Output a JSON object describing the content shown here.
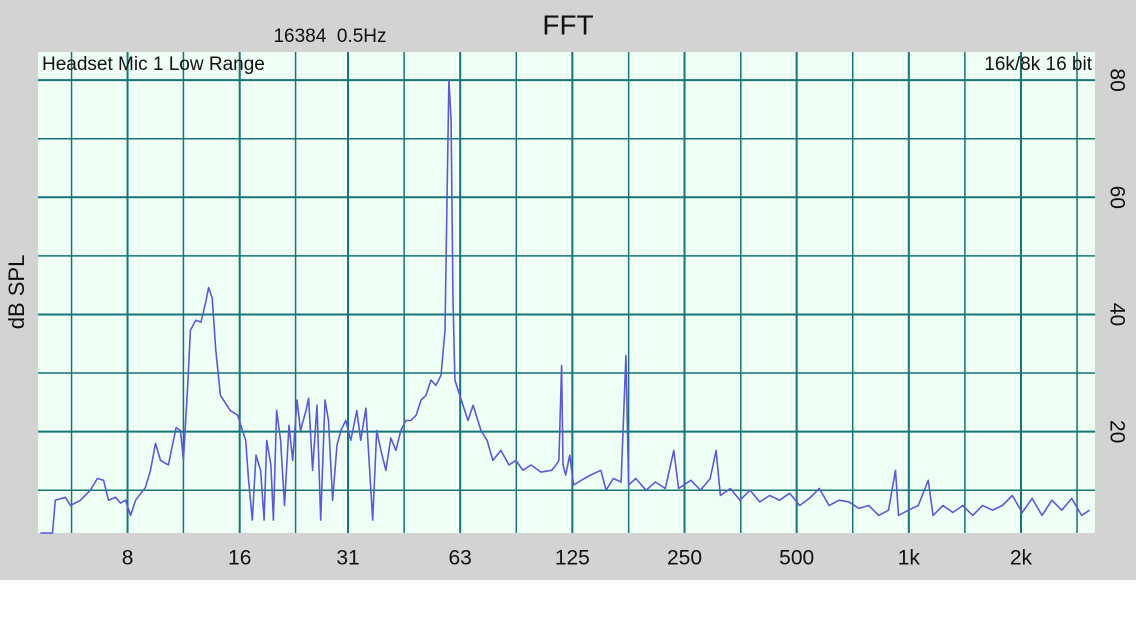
{
  "chart_data": {
    "type": "line",
    "title": "FFT",
    "subtitle": "16384  0.5Hz",
    "annotations": [
      "Headset Mic 1 Low Range",
      "16k/8k 16 bit"
    ],
    "y_label": "dB SPL",
    "xscale": "log",
    "xlim": [
      4.6,
      3160
    ],
    "ylim": [
      2.7,
      84.8
    ],
    "xticks": [
      8,
      16,
      {
        "value": 31.25,
        "label": "31"
      },
      {
        "value": 62.5,
        "label": "63"
      },
      125,
      250,
      500,
      {
        "value": 1000,
        "label": "1k"
      },
      {
        "value": 2000,
        "label": "2k"
      }
    ],
    "x_minor_ticks": [
      5.66,
      11.3,
      22.6,
      44.2,
      88.4,
      177,
      354,
      707,
      1414,
      2828
    ],
    "yticks": [
      20,
      40,
      60,
      80
    ],
    "y_minor_ticks": [
      10,
      30,
      50,
      70
    ],
    "grid": true,
    "color": "#5a5ad8",
    "x": [
      4.67,
      5.03,
      5.12,
      5.45,
      5.62,
      5.98,
      6.36,
      6.64,
      6.9,
      7.11,
      7.43,
      7.66,
      7.9,
      8.15,
      8.41,
      8.94,
      9.22,
      9.51,
      9.81,
      10.3,
      10.8,
      11.1,
      11.3,
      11.6,
      11.8,
      12.2,
      12.6,
      13,
      13.2,
      13.5,
      13.8,
      14.2,
      15.1,
      15.8,
      16.1,
      16.6,
      16.9,
      17.3,
      17.7,
      18.2,
      18.6,
      18.9,
      19.4,
      19.7,
      20.1,
      20.6,
      21.1,
      21.7,
      22.2,
      22.8,
      23.3,
      24.1,
      24.5,
      25.1,
      25.8,
      26.4,
      27.1,
      27.7,
      28.4,
      29.2,
      29.9,
      30.8,
      31.8,
      33,
      33.8,
      34.9,
      36.4,
      37.3,
      38.3,
      39.5,
      40.7,
      42,
      43.3,
      44.7,
      46.1,
      47.6,
      49.1,
      50.6,
      52.2,
      53.8,
      55.5,
      56.9,
      57.6,
      58.3,
      59.1,
      59.8,
      60.5,
      61.7,
      63.6,
      65.6,
      67.7,
      71.1,
      73.8,
      76.5,
      80.4,
      84.5,
      88.2,
      92.1,
      96.8,
      103,
      110,
      113,
      115,
      117,
      118,
      120,
      123,
      126,
      132,
      140,
      149,
      154,
      161,
      169,
      174,
      177,
      185,
      197,
      209,
      222,
      234,
      241,
      260,
      276,
      293,
      304,
      312,
      332,
      352,
      375,
      398,
      423,
      450,
      479,
      509,
      541,
      575,
      611,
      650,
      691,
      734,
      781,
      830,
      882,
      921,
      938,
      997,
      1060,
      1127,
      1162,
      1235,
      1313,
      1396,
      1484,
      1578,
      1677,
      1783,
      1896,
      2015,
      2142,
      2278,
      2421,
      2574,
      2736,
      2909,
      3055
    ],
    "values": [
      2.7,
      2.7,
      8.3,
      8.8,
      7.4,
      8.3,
      10,
      12,
      11.7,
      8.3,
      8.8,
      7.8,
      8.3,
      5.7,
      8.3,
      10.5,
      13.4,
      18,
      15.1,
      14.3,
      20.7,
      20.2,
      15.1,
      27.9,
      37.3,
      39,
      38.7,
      42.4,
      44.6,
      42.8,
      33.9,
      26.2,
      23.6,
      22.8,
      21.1,
      18.5,
      11.7,
      4.9,
      16,
      13.4,
      4.9,
      18.5,
      14.3,
      4.9,
      23.6,
      18.5,
      7.4,
      21.1,
      15.1,
      25.4,
      20.2,
      23.6,
      25.7,
      13.4,
      24.5,
      4.9,
      25.4,
      21.9,
      8.3,
      17.7,
      20.2,
      21.9,
      18.5,
      23.6,
      18.5,
      24,
      4.9,
      20.2,
      16.8,
      13.4,
      18.9,
      16.8,
      20.2,
      21.9,
      21.9,
      22.8,
      25.4,
      26.2,
      28.8,
      27.9,
      29.6,
      37.3,
      59.5,
      80,
      73.1,
      42.4,
      28.8,
      27.1,
      24.5,
      21.9,
      24.5,
      20.2,
      18.5,
      15.1,
      16.8,
      14.3,
      15.1,
      13.4,
      14.3,
      13.1,
      13.4,
      14.3,
      15.1,
      31.3,
      14.3,
      12.6,
      16,
      10.9,
      11.7,
      12.6,
      13.4,
      10,
      12,
      11.4,
      33,
      10.9,
      12,
      10,
      11.4,
      10.3,
      16.8,
      10.3,
      11.7,
      10,
      12,
      16.8,
      9.1,
      10.3,
      8.3,
      10,
      8,
      9.1,
      8.3,
      9.5,
      7.4,
      8.6,
      10.3,
      7.4,
      8.3,
      8,
      6.9,
      7.4,
      5.7,
      6.6,
      13.4,
      5.7,
      6.6,
      7.4,
      11.7,
      5.7,
      7.4,
      6.2,
      7.4,
      5.7,
      7.4,
      6.6,
      7.4,
      9.1,
      6.2,
      8.6,
      5.7,
      8.3,
      6.6,
      8.6,
      5.7,
      6.6
    ]
  }
}
